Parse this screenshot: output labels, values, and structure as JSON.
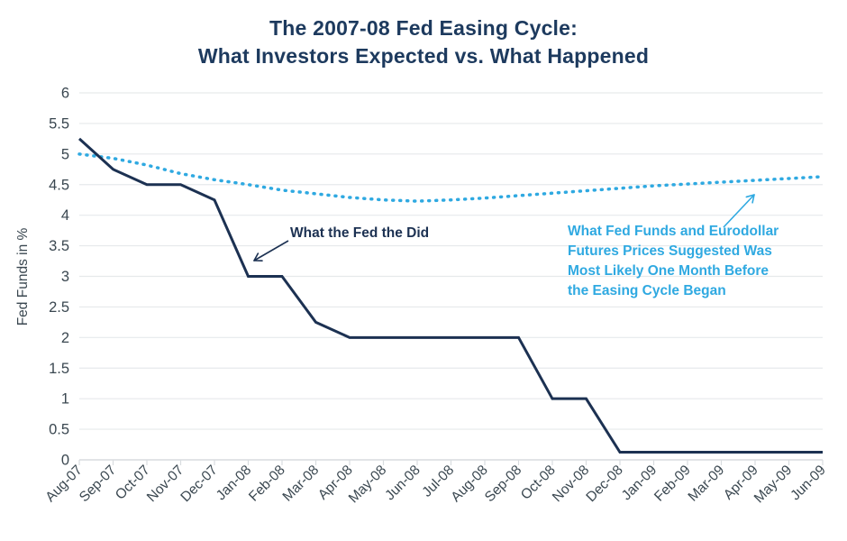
{
  "title": {
    "line1": "The 2007-08 Fed Easing Cycle:",
    "line2": "What Investors Expected vs. What Happened"
  },
  "y_axis": {
    "label": "Fed Funds in %",
    "ticks": [
      "0",
      "0.5",
      "1",
      "1.5",
      "2",
      "2.5",
      "3",
      "3.5",
      "4",
      "4.5",
      "5",
      "5.5",
      "6"
    ]
  },
  "chart_data": {
    "type": "line",
    "title": "The 2007-08 Fed Easing Cycle: What Investors Expected vs. What Happened",
    "xlabel": "",
    "ylabel": "Fed Funds in %",
    "ylim": [
      0,
      6
    ],
    "grid": true,
    "legend_position": "none",
    "categories": [
      "Aug-07",
      "Sep-07",
      "Oct-07",
      "Nov-07",
      "Dec-07",
      "Jan-08",
      "Feb-08",
      "Mar-08",
      "Apr-08",
      "May-08",
      "Jun-08",
      "Jul-08",
      "Aug-08",
      "Sep-08",
      "Oct-08",
      "Nov-08",
      "Dec-08",
      "Jan-09",
      "Feb-09",
      "Mar-09",
      "Apr-09",
      "May-09",
      "Jun-09"
    ],
    "series": [
      {
        "name": "What the Fed the Did",
        "style": "solid",
        "color": "#1c3152",
        "values": [
          5.25,
          4.75,
          4.5,
          4.5,
          4.25,
          3.0,
          3.0,
          2.25,
          2.0,
          2.0,
          2.0,
          2.0,
          2.0,
          2.0,
          1.0,
          1.0,
          0.125,
          0.125,
          0.125,
          0.125,
          0.125,
          0.125,
          0.125
        ]
      },
      {
        "name": "What Fed Funds and Eurodollar Futures Prices Suggested Was Most Likely One Month Before the Easing Cycle Began",
        "style": "dotted",
        "color": "#2fa9e1",
        "values": [
          5.0,
          4.93,
          4.82,
          4.68,
          4.58,
          4.5,
          4.41,
          4.35,
          4.29,
          4.25,
          4.23,
          4.25,
          4.28,
          4.32,
          4.36,
          4.4,
          4.44,
          4.48,
          4.51,
          4.54,
          4.57,
          4.6,
          4.63
        ]
      }
    ]
  },
  "annotations": {
    "fed": {
      "text": "What the Fed the Did",
      "color": "#1c3152"
    },
    "futures": {
      "lines": [
        "What Fed Funds and Eurodollar",
        "Futures Prices Suggested Was",
        "Most Likely One Month Before",
        "the Easing Cycle Began"
      ],
      "color": "#2fa9e1"
    }
  },
  "colors": {
    "navy": "#1c3152",
    "title_navy": "#1d3a5e",
    "light_blue": "#2fa9e1",
    "gridline": "#e6e9eb",
    "baseline": "#d8dcdf",
    "axis_text": "#3a4750",
    "background": "#ffffff"
  }
}
